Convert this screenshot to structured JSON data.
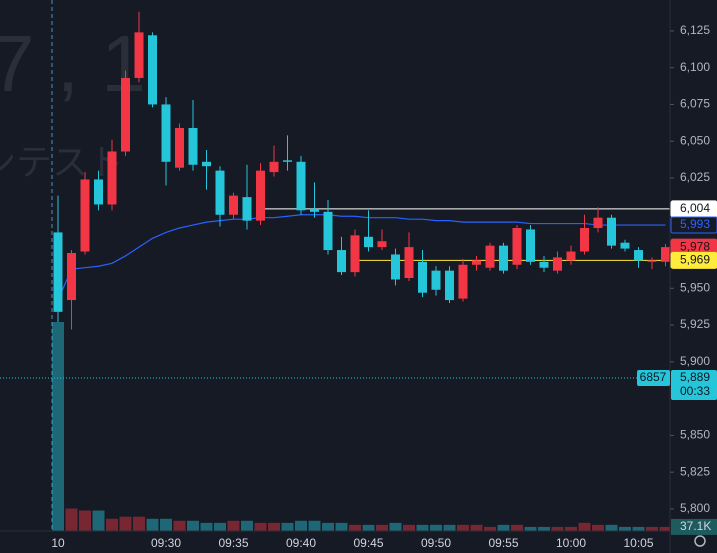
{
  "chart_data": {
    "type": "candlestick",
    "watermark": [
      "7 , 1",
      "ンテスト"
    ],
    "categories": [
      "10",
      null,
      null,
      null,
      null,
      null,
      null,
      null,
      "09:30",
      null,
      null,
      null,
      null,
      "09:35",
      null,
      null,
      null,
      null,
      "09:40",
      null,
      null,
      null,
      null,
      "09:45",
      null,
      null,
      null,
      null,
      "09:50",
      null,
      null,
      null,
      null,
      "09:55",
      null,
      null,
      null,
      null,
      "10:00",
      null,
      null,
      null,
      null,
      "10:05",
      null,
      null
    ],
    "open": [
      5988,
      5942,
      5975,
      6024,
      6007,
      6043,
      6093,
      6122,
      6075,
      6032,
      6059,
      6036,
      6030,
      6000,
      6012,
      5996,
      6029,
      6037,
      6036,
      6004,
      6002,
      5976,
      5961,
      5985,
      5978,
      5973,
      5957,
      5968,
      5962,
      5962,
      5943,
      5966,
      5964,
      5979,
      5966,
      5990,
      5968,
      5962,
      5969,
      5975,
      5991,
      5998,
      5981,
      5976,
      5968,
      5968
    ],
    "high": [
      6013,
      5976,
      6029,
      6030,
      6051,
      6098,
      6138,
      6124,
      6080,
      6062,
      6078,
      6044,
      6033,
      6015,
      6034,
      6035,
      6047,
      6054,
      6040,
      6022,
      6010,
      5985,
      5990,
      6003,
      5990,
      5977,
      5988,
      5976,
      5965,
      5965,
      5970,
      5972,
      5981,
      5981,
      5993,
      5993,
      5972,
      5975,
      5979,
      6000,
      6005,
      6000,
      5983,
      5978,
      5971,
      5980
    ],
    "low": [
      5927,
      5922,
      5973,
      6003,
      6003,
      6040,
      6090,
      6073,
      6020,
      6030,
      6030,
      6017,
      5992,
      5997,
      5990,
      5993,
      6026,
      6030,
      6000,
      5998,
      5973,
      5959,
      5958,
      5975,
      5976,
      5952,
      5955,
      5944,
      5945,
      5940,
      5941,
      5962,
      5962,
      5960,
      5963,
      5966,
      5961,
      5960,
      5966,
      5973,
      5988,
      5977,
      5975,
      5964,
      5963,
      5965
    ],
    "close": [
      5934,
      5974,
      6024,
      6007,
      6043,
      6093,
      6124,
      6075,
      6036,
      6059,
      6034,
      6033,
      6000,
      6013,
      5996,
      6030,
      6036,
      6036,
      6003,
      6002,
      5976,
      5961,
      5986,
      5978,
      5982,
      5956,
      5978,
      5947,
      5949,
      5942,
      5966,
      5969,
      5979,
      5962,
      5991,
      5968,
      5964,
      5971,
      5975,
      5991,
      5998,
      5979,
      5977,
      5969,
      5969,
      5978
    ],
    "volume": [
      1900000,
      204000,
      186000,
      186000,
      111000,
      130000,
      130000,
      111000,
      111000,
      93000,
      93000,
      74000,
      74000,
      93000,
      93000,
      74000,
      74000,
      74000,
      93000,
      93000,
      74000,
      74000,
      56000,
      56000,
      56000,
      74000,
      56000,
      56000,
      56000,
      56000,
      56000,
      56000,
      37100,
      56000,
      56000,
      37100,
      37100,
      37100,
      37100,
      74000,
      56000,
      56000,
      37100,
      37100,
      37100,
      37100
    ],
    "volume_label": "37.1K",
    "vlim": [
      0,
      2300000
    ],
    "up_color": "#f23645",
    "down_color": "#26c6da",
    "ma": {
      "color": "#2962ff",
      "values": [
        5942,
        5963,
        5964,
        5965,
        5967,
        5972,
        5978,
        5984,
        5988,
        5991,
        5993,
        5995,
        5996,
        5997,
        5997,
        5998,
        5998,
        5999,
        6000,
        6000,
        6000,
        5999,
        5999,
        5998,
        5998,
        5998,
        5997,
        5997,
        5996,
        5996,
        5995,
        5995,
        5995,
        5995,
        5995,
        5994,
        5994,
        5994,
        5994,
        5994,
        5993,
        5993,
        5993,
        5993,
        5993,
        5993
      ]
    },
    "ylim": [
      5785,
      6146
    ],
    "yticks": [
      {
        "value": 6125,
        "label": "6,125"
      },
      {
        "value": 6100,
        "label": "6,100"
      },
      {
        "value": 6075,
        "label": "6,075"
      },
      {
        "value": 6050,
        "label": "6,050"
      },
      {
        "value": 6025,
        "label": "6,025"
      },
      {
        "value": 5950,
        "label": "5,950"
      },
      {
        "value": 5925,
        "label": "5,925"
      },
      {
        "value": 5900,
        "label": "5,900"
      },
      {
        "value": 5850,
        "label": "5,850"
      },
      {
        "value": 5825,
        "label": "5,825"
      },
      {
        "value": 5800,
        "label": "5,800"
      }
    ],
    "price_labels": [
      {
        "value": 6004,
        "label": "6,004",
        "color": "#ffffff",
        "text_color": "#131722",
        "line": true
      },
      {
        "value": 5993,
        "label": "5,993",
        "color": "#2962ff",
        "text_color": "#2962ff",
        "line": false
      },
      {
        "value": 5978,
        "label": "5,978",
        "color": "#f23645",
        "text_color": "#131722",
        "line": false
      },
      {
        "value": 5969,
        "label": "5,969",
        "color": "#ffeb3b",
        "text_color": "#131722",
        "line": true
      }
    ],
    "crosshair": {
      "value": 5889,
      "label": "5,889",
      "countdown": "00:33",
      "tag": "6857",
      "color": "#26c6da"
    }
  }
}
